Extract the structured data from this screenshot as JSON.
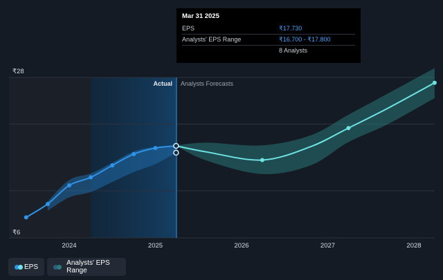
{
  "chart_data": {
    "type": "line",
    "x_ticks": [
      "2024",
      "2025",
      "2026",
      "2027",
      "2028"
    ],
    "y_ticks": [
      "₹28",
      "₹6"
    ],
    "ylim": [
      6,
      28
    ],
    "xlim": [
      2023.4,
      2028.25
    ],
    "grid": true,
    "regions": {
      "actual_label": "Actual",
      "forecast_label": "Analysts Forecasts",
      "split_x": 2025.24
    },
    "series": [
      {
        "name": "EPS",
        "color": "#2f93e8",
        "x": [
          2023.5,
          2023.75,
          2024.0,
          2024.25,
          2024.5,
          2024.75,
          2025.0,
          2025.24
        ],
        "y": [
          7.0,
          9.0,
          11.8,
          13.0,
          14.8,
          16.5,
          17.4,
          17.73
        ]
      },
      {
        "name": "EPS Forecast",
        "color": "#6fe3e3",
        "x": [
          2025.24,
          2025.6,
          2026.24,
          2026.8,
          2027.24,
          2027.7,
          2028.24
        ],
        "y": [
          17.73,
          16.8,
          15.6,
          17.6,
          20.4,
          23.4,
          27.2
        ]
      }
    ],
    "ranges": [
      {
        "name": "Analysts' EPS Range (Actual)",
        "x": [
          2023.75,
          2024.0,
          2024.25,
          2024.5,
          2024.75,
          2025.0,
          2025.24
        ],
        "low": [
          8.0,
          10.0,
          10.8,
          12.3,
          13.8,
          15.0,
          16.7
        ],
        "high": [
          9.4,
          12.6,
          13.6,
          15.2,
          16.9,
          17.6,
          17.8
        ]
      },
      {
        "name": "Analysts' EPS Range (Forecast)",
        "x": [
          2025.24,
          2025.6,
          2026.24,
          2026.8,
          2027.24,
          2027.7,
          2028.24
        ],
        "low": [
          17.73,
          15.5,
          13.5,
          14.8,
          18.3,
          21.0,
          24.9
        ],
        "high": [
          17.8,
          18.2,
          17.8,
          19.3,
          22.4,
          25.6,
          29.4
        ]
      }
    ],
    "markers": [
      {
        "series": "EPS",
        "x": 2023.5,
        "y": 7.0
      },
      {
        "series": "EPS",
        "x": 2023.75,
        "y": 9.0
      },
      {
        "series": "EPS",
        "x": 2024.0,
        "y": 11.8
      },
      {
        "series": "EPS",
        "x": 2024.25,
        "y": 13.0
      },
      {
        "series": "EPS",
        "x": 2024.5,
        "y": 14.8
      },
      {
        "series": "EPS",
        "x": 2024.75,
        "y": 16.5
      },
      {
        "series": "EPS",
        "x": 2025.0,
        "y": 17.4
      },
      {
        "series": "EPS Forecast",
        "x": 2026.24,
        "y": 15.6
      },
      {
        "series": "EPS Forecast",
        "x": 2027.24,
        "y": 20.4
      },
      {
        "series": "EPS Forecast",
        "x": 2028.24,
        "y": 27.2
      }
    ],
    "highlight": {
      "x": 2025.24,
      "y_values": [
        17.73,
        16.7
      ]
    }
  },
  "tooltip": {
    "date": "Mar 31 2025",
    "rows": [
      {
        "label": "EPS",
        "value": "₹17.730"
      },
      {
        "label": "Analysts' EPS Range",
        "value": "₹16.700 - ₹17.800"
      },
      {
        "label": "",
        "value": "8 Analysts"
      }
    ]
  },
  "legend": {
    "items": [
      {
        "label": "EPS",
        "colors": [
          "#2f93e8",
          "#6fe3e3"
        ]
      },
      {
        "label": "Analysts' EPS Range",
        "colors": [
          "#2a5f7e",
          "#2a7a7a"
        ]
      }
    ]
  },
  "colors": {
    "background": "#151b24",
    "past_band": "#1b2028",
    "actual_band": "#12324f",
    "gridline": "#2b333e",
    "split_line": "#2f93e8"
  }
}
